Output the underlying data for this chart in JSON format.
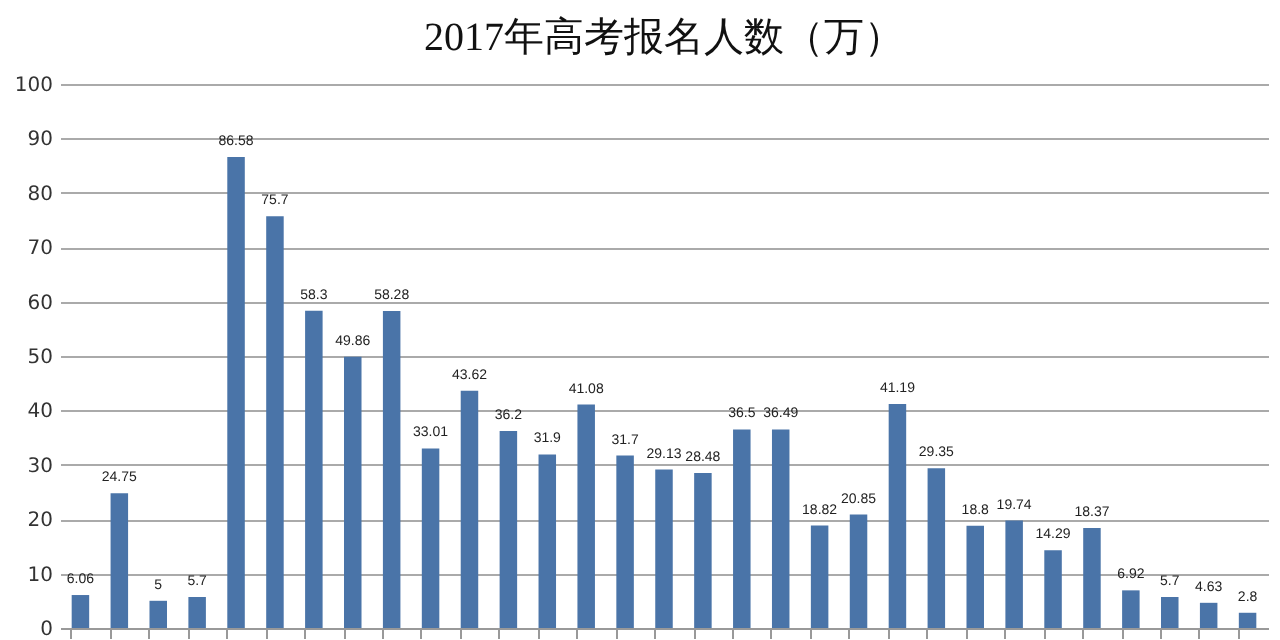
{
  "chart_data": {
    "type": "bar",
    "title": "2017年高考报名人数（万）",
    "categories": [
      null,
      null,
      null,
      null,
      null,
      null,
      null,
      null,
      null,
      null,
      null,
      null,
      null,
      null,
      null,
      null,
      null,
      null,
      null,
      null,
      null,
      null,
      null,
      null,
      null,
      null,
      null,
      null,
      null,
      null,
      null
    ],
    "values": [
      6.06,
      24.75,
      5,
      5.7,
      86.58,
      75.7,
      58.3,
      49.86,
      58.28,
      33.01,
      43.62,
      36.2,
      31.9,
      41.08,
      31.7,
      29.13,
      28.48,
      36.5,
      36.49,
      18.82,
      20.85,
      41.19,
      29.35,
      18.8,
      19.74,
      14.29,
      18.37,
      6.92,
      5.7,
      4.63,
      2.8
    ],
    "color": "#4a74a8",
    "ylim": [
      0,
      100
    ],
    "yticks": [
      0,
      10,
      20,
      30,
      40,
      50,
      60,
      70,
      80,
      90,
      100
    ],
    "grid": "y",
    "tick_labels": "y",
    "data_labels": true
  }
}
